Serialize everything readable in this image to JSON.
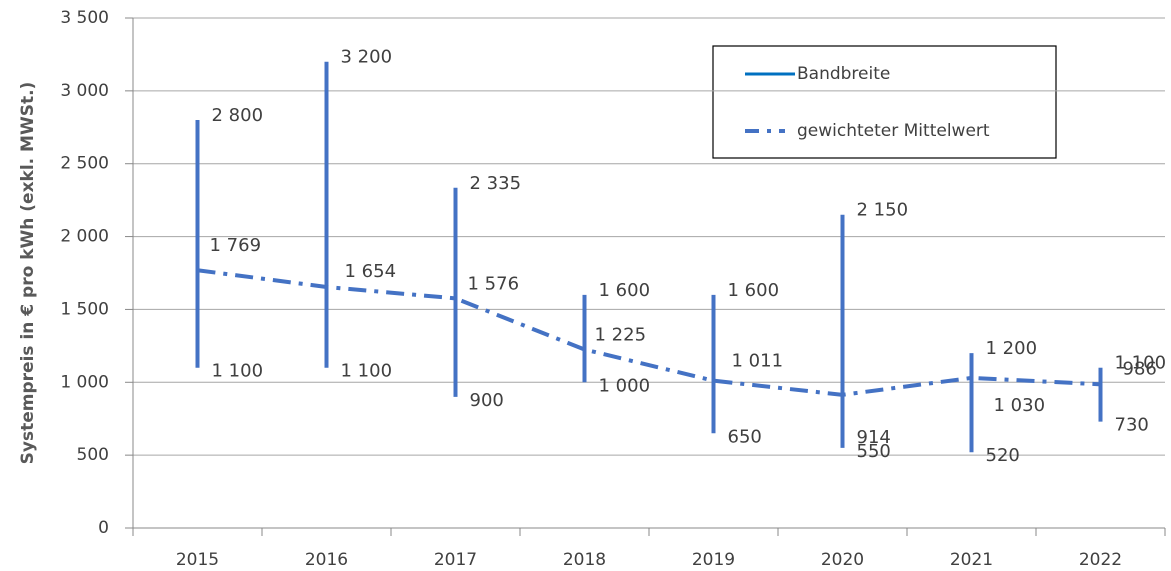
{
  "chart_data": {
    "type": "range",
    "y_label": "Systempreis in € pro kWh  (exkl. MWSt.)",
    "categories": [
      "2015",
      "2016",
      "2017",
      "2018",
      "2019",
      "2020",
      "2021",
      "2022"
    ],
    "series": [
      {
        "name": "Bandbreite",
        "color": "#4472c4",
        "high": [
          2800,
          3200,
          2335,
          1600,
          1600,
          2150,
          1200,
          1100
        ],
        "high_labels": [
          "2 800",
          "3 200",
          "2 335",
          "1 600",
          "1 600",
          "2 150",
          "1 200",
          "1 100"
        ],
        "low": [
          1100,
          1100,
          900,
          1000,
          650,
          550,
          520,
          730
        ],
        "low_labels": [
          "1 100",
          "1 100",
          "900",
          "1 000",
          "650",
          "550",
          "520",
          "730"
        ]
      },
      {
        "name": "gewichteter Mittelwert",
        "color": "#4472c4",
        "values": [
          1769,
          1654,
          1576,
          1225,
          1011,
          914,
          1030,
          986
        ],
        "value_labels": [
          "1 769",
          "1 654",
          "1 576",
          "1 225",
          "1 011",
          "914",
          "1 030",
          "986"
        ]
      }
    ],
    "ylim": [
      0,
      3500
    ],
    "yticks": [
      0,
      500,
      {
        "value": 1000,
        "label": "1 000"
      },
      {
        "value": 1500,
        "label": "1 500"
      },
      {
        "value": 2000,
        "label": "2 000"
      },
      {
        "value": 2500,
        "label": "2 500"
      },
      {
        "value": 3000,
        "label": "3 000"
      },
      {
        "value": 3500,
        "label": "3 500"
      }
    ],
    "grid": true
  }
}
